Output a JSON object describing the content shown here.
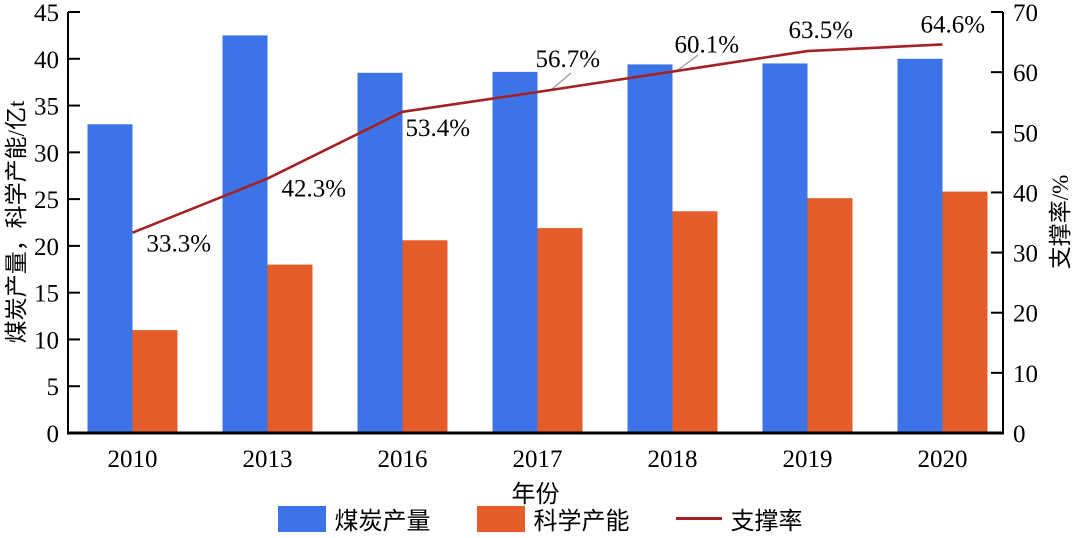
{
  "chart_data": {
    "type": "bar+line",
    "categories": [
      "2010",
      "2013",
      "2016",
      "2017",
      "2018",
      "2019",
      "2020"
    ],
    "series": [
      {
        "key": "coal-production",
        "name": "煤炭产量",
        "type": "bar",
        "axis": "left",
        "color": "#3c74e8",
        "values": [
          33.0,
          42.5,
          38.5,
          38.6,
          39.4,
          39.5,
          40.0
        ]
      },
      {
        "key": "scientific-capacity",
        "name": "科学产能",
        "type": "bar",
        "axis": "left",
        "color": "#e55c2b",
        "values": [
          11.0,
          18.0,
          20.6,
          21.9,
          23.7,
          25.1,
          25.8
        ]
      },
      {
        "key": "support-rate",
        "name": "支撑率",
        "type": "line",
        "axis": "right",
        "color": "#a42125",
        "values": [
          33.3,
          42.3,
          53.4,
          56.7,
          60.1,
          63.5,
          64.6
        ],
        "point_labels": [
          "33.3%",
          "42.3%",
          "53.4%",
          "56.7%",
          "60.1%",
          "63.5%",
          "64.6%"
        ]
      }
    ],
    "xlabel": "年份",
    "left_axis": {
      "label": "煤炭产量，科学产能/亿t",
      "range": [
        0,
        45
      ],
      "ticks": [
        0,
        5,
        10,
        15,
        20,
        25,
        30,
        35,
        40,
        45
      ]
    },
    "right_axis": {
      "label": "支撑率/%",
      "range": [
        0,
        70
      ],
      "ticks": [
        0,
        10,
        20,
        30,
        40,
        50,
        60,
        70
      ]
    },
    "grid": false,
    "legend_position": "bottom"
  }
}
